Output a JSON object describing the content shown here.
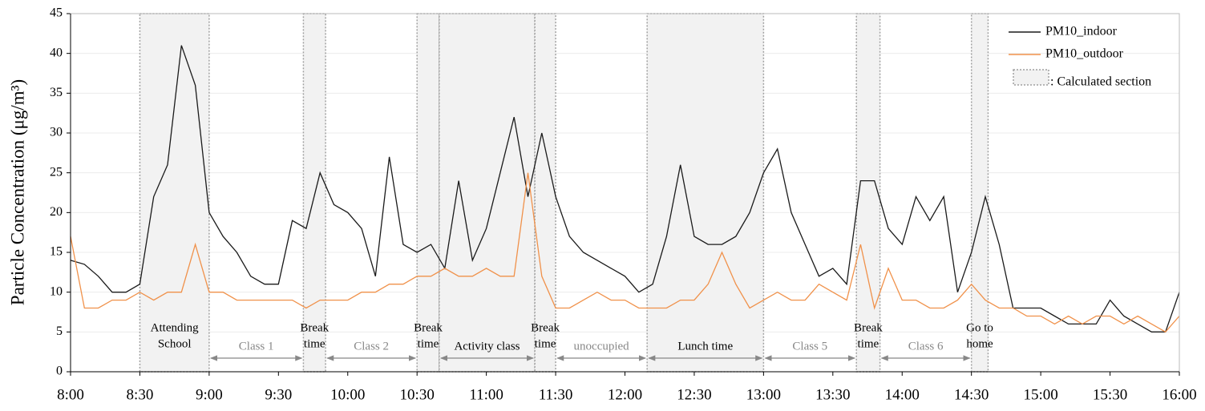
{
  "chart_data": {
    "type": "line",
    "ylabel": "Particle Concentration (μg/m³)",
    "x": [
      8.0,
      8.1,
      8.2,
      8.3,
      8.4,
      8.5,
      8.6,
      8.7,
      8.8,
      8.9,
      9.0,
      9.1,
      9.2,
      9.3,
      9.4,
      9.5,
      9.6,
      9.7,
      9.8,
      9.9,
      10.0,
      10.1,
      10.2,
      10.3,
      10.4,
      10.5,
      10.6,
      10.7,
      10.8,
      10.9,
      11.0,
      11.1,
      11.2,
      11.3,
      11.4,
      11.5,
      11.6,
      11.7,
      11.8,
      11.9,
      12.0,
      12.1,
      12.2,
      12.3,
      12.4,
      12.5,
      12.6,
      12.7,
      12.8,
      12.9,
      13.0,
      13.1,
      13.2,
      13.3,
      13.4,
      13.5,
      13.6,
      13.7,
      13.8,
      13.9,
      14.0,
      14.1,
      14.2,
      14.3,
      14.4,
      14.5,
      14.6,
      14.7,
      14.8,
      14.9,
      15.0,
      15.1,
      15.2,
      15.3,
      15.4,
      15.5,
      15.6,
      15.7,
      15.8,
      15.9,
      16.0
    ],
    "series": [
      {
        "name": "PM10_indoor",
        "color": "#1a1a1a",
        "values": [
          14,
          13.5,
          12,
          10,
          10,
          11,
          22,
          26,
          41,
          36,
          20,
          17,
          15,
          12,
          11,
          11,
          19,
          18,
          25,
          21,
          20,
          18,
          12,
          27,
          16,
          15,
          16,
          13,
          24,
          14,
          18,
          25,
          32,
          22,
          30,
          22,
          17,
          15,
          14,
          13,
          12,
          10,
          11,
          17,
          26,
          17,
          16,
          16,
          17,
          20,
          25,
          28,
          20,
          16,
          12,
          13,
          11,
          24,
          24,
          18,
          16,
          22,
          19,
          22,
          10,
          15,
          22,
          16,
          8,
          8,
          8,
          7,
          6,
          6,
          6,
          9,
          7,
          6,
          5,
          5,
          10
        ]
      },
      {
        "name": "PM10_outdoor",
        "color": "#f0914a",
        "values": [
          17,
          8,
          8,
          9,
          9,
          10,
          9,
          10,
          10,
          16,
          10,
          10,
          9,
          9,
          9,
          9,
          9,
          8,
          9,
          9,
          9,
          10,
          10,
          11,
          11,
          12,
          12,
          13,
          12,
          12,
          13,
          12,
          12,
          25,
          12,
          8,
          8,
          9,
          10,
          9,
          9,
          8,
          8,
          8,
          9,
          9,
          11,
          15,
          11,
          8,
          9,
          10,
          9,
          9,
          11,
          10,
          9,
          16,
          8,
          13,
          9,
          9,
          8,
          8,
          9,
          11,
          9,
          8,
          8,
          7,
          7,
          6,
          7,
          6,
          7,
          7,
          6,
          7,
          6,
          5,
          7
        ]
      }
    ],
    "xlim": [
      8,
      16
    ],
    "xticks": [
      {
        "value": 8,
        "label": "8:00"
      },
      {
        "value": 8.5,
        "label": "8:30"
      },
      {
        "value": 9,
        "label": "9:00"
      },
      {
        "value": 9.5,
        "label": "9:30"
      },
      {
        "value": 10,
        "label": "10:00"
      },
      {
        "value": 10.5,
        "label": "10:30"
      },
      {
        "value": 11,
        "label": "11:00"
      },
      {
        "value": 11.5,
        "label": "11:30"
      },
      {
        "value": 12,
        "label": "12:00"
      },
      {
        "value": 12.5,
        "label": "12:30"
      },
      {
        "value": 13,
        "label": "13:00"
      },
      {
        "value": 13.5,
        "label": "13:30"
      },
      {
        "value": 14,
        "label": "14:00"
      },
      {
        "value": 14.5,
        "label": "14:30"
      },
      {
        "value": 15,
        "label": "15:00"
      },
      {
        "value": 15.5,
        "label": "15:30"
      },
      {
        "value": 16,
        "label": "16:00"
      }
    ],
    "ylim": [
      0,
      45
    ],
    "yticks": [
      0,
      5,
      10,
      15,
      20,
      25,
      30,
      35,
      40,
      45
    ],
    "grid": true,
    "legend": "upper right",
    "section_legend": ": Calculated section",
    "periods": [
      {
        "label": [
          "Attending",
          "School"
        ],
        "start": 8.5,
        "end": 9.0,
        "shaded": true,
        "arrow": false
      },
      {
        "label": [
          "Class 1"
        ],
        "start": 9.0,
        "end": 9.68,
        "shaded": false,
        "arrow": true
      },
      {
        "label": [
          "Break",
          "time"
        ],
        "start": 9.68,
        "end": 9.84,
        "shaded": true,
        "arrow": false
      },
      {
        "label": [
          "Class 2"
        ],
        "start": 9.84,
        "end": 10.5,
        "shaded": false,
        "arrow": true
      },
      {
        "label": [
          "Break",
          "time"
        ],
        "start": 10.5,
        "end": 10.66,
        "shaded": true,
        "arrow": false
      },
      {
        "label": [
          "Activity class"
        ],
        "start": 10.66,
        "end": 11.35,
        "shaded": true,
        "arrow": true
      },
      {
        "label": [
          "Break",
          "time"
        ],
        "start": 11.35,
        "end": 11.5,
        "shaded": true,
        "arrow": false
      },
      {
        "label": [
          "unoccupied"
        ],
        "start": 11.5,
        "end": 12.16,
        "shaded": false,
        "arrow": true
      },
      {
        "label": [
          "Lunch time"
        ],
        "start": 12.16,
        "end": 13.0,
        "shaded": true,
        "arrow": true
      },
      {
        "label": [
          "Class 5"
        ],
        "start": 13.0,
        "end": 13.67,
        "shaded": false,
        "arrow": true
      },
      {
        "label": [
          "Break",
          "time"
        ],
        "start": 13.67,
        "end": 13.84,
        "shaded": true,
        "arrow": false
      },
      {
        "label": [
          "Class 6"
        ],
        "start": 13.84,
        "end": 14.5,
        "shaded": false,
        "arrow": true
      },
      {
        "label": [
          "Go to",
          "home"
        ],
        "start": 14.5,
        "end": 14.62,
        "shaded": true,
        "arrow": false
      }
    ]
  }
}
